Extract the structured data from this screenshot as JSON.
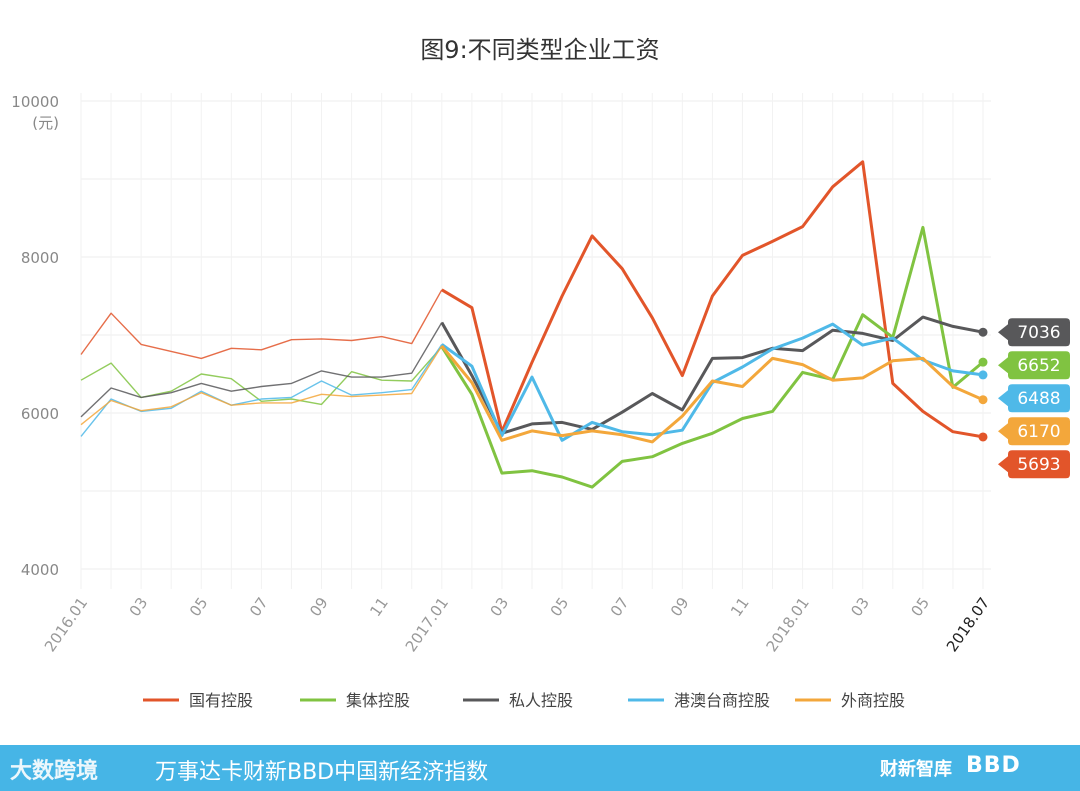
{
  "chart_data": {
    "type": "line",
    "title": "图9:不同类型企业工资",
    "ylabel": "(元)",
    "ylim": [
      4000,
      10000
    ],
    "yticks": [
      "10000",
      "8000",
      "6000",
      "4000"
    ],
    "x_tick_labels": [
      "2016.01",
      "",
      "03",
      "",
      "05",
      "",
      "07",
      "",
      "09",
      "",
      "11",
      "",
      "2017.01",
      "",
      "03",
      "",
      "05",
      "",
      "07",
      "",
      "09",
      "",
      "11",
      "",
      "2018.01",
      "",
      "03",
      "",
      "05",
      "",
      "2018.07"
    ],
    "grid": true,
    "legend_position": "bottom",
    "series": [
      {
        "name": "国有控股",
        "color": "#e2552a",
        "end_label": "5693",
        "values": [
          6750,
          7280,
          6880,
          6790,
          6700,
          6830,
          6810,
          6940,
          6950,
          6930,
          6980,
          6890,
          7580,
          7350,
          5760,
          6650,
          7500,
          8270,
          7850,
          7220,
          6480,
          7500,
          8020,
          8200,
          8390,
          8900,
          9220,
          6380,
          6020,
          5760,
          5693
        ]
      },
      {
        "name": "集体控股",
        "color": "#80c341",
        "end_label": "6652",
        "values": [
          6420,
          6640,
          6200,
          6280,
          6500,
          6440,
          6150,
          6180,
          6110,
          6530,
          6420,
          6410,
          6850,
          6240,
          5230,
          5260,
          5180,
          5050,
          5380,
          5440,
          5610,
          5740,
          5930,
          6020,
          6520,
          6430,
          7260,
          6970,
          8380,
          6330,
          6652
        ]
      },
      {
        "name": "私人控股",
        "color": "#58585a",
        "end_label": "7036",
        "values": [
          5950,
          6320,
          6200,
          6260,
          6380,
          6280,
          6340,
          6380,
          6540,
          6460,
          6460,
          6510,
          7160,
          6480,
          5740,
          5860,
          5880,
          5790,
          6010,
          6250,
          6040,
          6700,
          6710,
          6830,
          6800,
          7060,
          7020,
          6930,
          7230,
          7110,
          7036
        ]
      },
      {
        "name": "港澳台商控股",
        "color": "#4fb9e8",
        "end_label": "6488",
        "values": [
          5700,
          6180,
          6020,
          6060,
          6280,
          6100,
          6180,
          6200,
          6410,
          6230,
          6260,
          6300,
          6880,
          6600,
          5710,
          6460,
          5650,
          5880,
          5760,
          5720,
          5780,
          6390,
          6590,
          6820,
          6960,
          7140,
          6870,
          6960,
          6680,
          6540,
          6488
        ]
      },
      {
        "name": "外商控股",
        "color": "#f3a73b",
        "end_label": "6170",
        "values": [
          5850,
          6160,
          6030,
          6080,
          6260,
          6100,
          6130,
          6130,
          6240,
          6210,
          6230,
          6250,
          6860,
          6390,
          5650,
          5770,
          5710,
          5770,
          5720,
          5630,
          5960,
          6410,
          6340,
          6700,
          6620,
          6420,
          6450,
          6670,
          6700,
          6340,
          6170
        ]
      }
    ]
  },
  "footer": {
    "left_logo": "大数跨境",
    "brand_text": "万事达卡财新BBD中国新经济指数",
    "right_logo_1": "财新智库",
    "right_logo_2": "BBD"
  }
}
